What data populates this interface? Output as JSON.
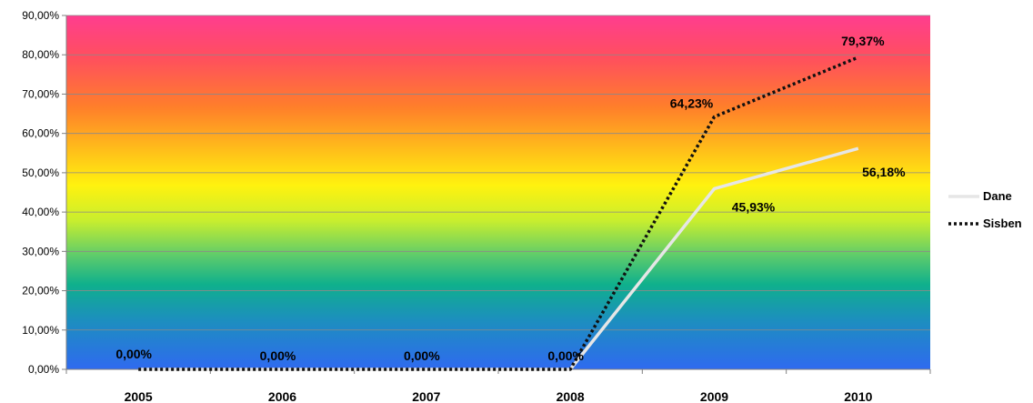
{
  "chart_data": {
    "type": "line",
    "title": "",
    "xlabel": "",
    "ylabel": "",
    "categories": [
      "2005",
      "2006",
      "2007",
      "2008",
      "2009",
      "2010"
    ],
    "ylim": [
      0,
      90
    ],
    "y_ticks": [
      "0,00%",
      "10,00%",
      "20,00%",
      "30,00%",
      "40,00%",
      "50,00%",
      "60,00%",
      "70,00%",
      "80,00%",
      "90,00%"
    ],
    "grid": true,
    "legend_position": "right",
    "background": "vertical rainbow gradient (magenta top to blue bottom)",
    "series": [
      {
        "name": "Dane",
        "style": "solid",
        "color": "#e6e6e6",
        "values": [
          0,
          0,
          0,
          0,
          45.93,
          56.18
        ],
        "labels": [
          "",
          "",
          "",
          "",
          "45,93%",
          "56,18%"
        ]
      },
      {
        "name": "Sisben",
        "style": "dotted",
        "color": "#111111",
        "values": [
          0,
          0,
          0,
          0,
          64.23,
          79.37
        ],
        "labels": [
          "0,00%",
          "0,00%",
          "0,00%",
          "0,00%",
          "64,23%",
          "79,37%"
        ]
      }
    ]
  }
}
